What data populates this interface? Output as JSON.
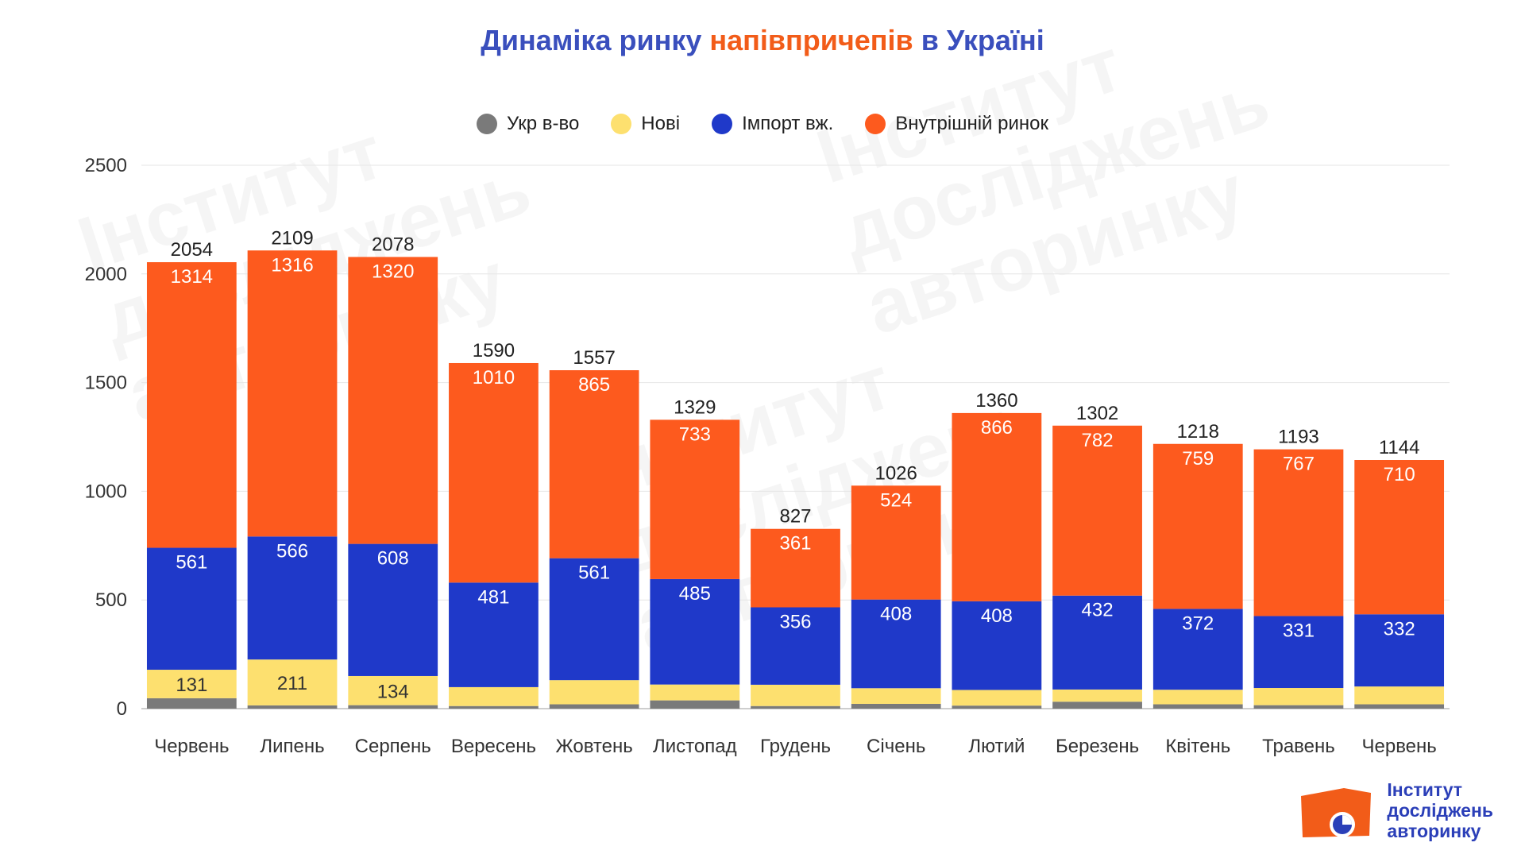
{
  "title": {
    "part1": "Динаміка ринку ",
    "part2": "напівпричепів",
    "part3": " в Україні"
  },
  "colors": {
    "ukr": "#7a7a7a",
    "new": "#fde06f",
    "import": "#1f39c9",
    "domestic": "#fd5a1e",
    "title_blue": "#3a4fbd",
    "title_orange": "#f25c19"
  },
  "logo": {
    "line1": "Інститут",
    "line2": "досліджень",
    "line3": "авторинку"
  },
  "watermark": {
    "line1": "Інститут",
    "line2": "досліджень",
    "line3": "авторинку"
  },
  "chart_data": {
    "type": "bar",
    "stacked": true,
    "categories": [
      "Червень",
      "Липень",
      "Серпень",
      "Вересень",
      "Жовтень",
      "Листопад",
      "Грудень",
      "Січень",
      "Лютий",
      "Березень",
      "Квітень",
      "Травень",
      "Червень"
    ],
    "series": [
      {
        "name": "Укр в-во",
        "values": [
          48,
          15,
          16,
          12,
          20,
          38,
          12,
          22,
          14,
          32,
          20,
          16,
          20
        ]
      },
      {
        "name": "Нові",
        "values": [
          131,
          211,
          134,
          87,
          111,
          73,
          98,
          72,
          72,
          56,
          67,
          79,
          82
        ]
      },
      {
        "name": "Імпорт вж.",
        "values": [
          561,
          566,
          608,
          481,
          561,
          485,
          356,
          408,
          408,
          432,
          372,
          331,
          332
        ]
      },
      {
        "name": "Внутрішній ринок",
        "values": [
          1314,
          1316,
          1320,
          1010,
          865,
          733,
          361,
          524,
          866,
          782,
          759,
          767,
          710
        ]
      }
    ],
    "labeled_series": [
      "Нові",
      "Імпорт вж.",
      "Внутрішній ринок"
    ],
    "new_label_threshold": 120,
    "totals": [
      2054,
      2109,
      2078,
      1590,
      1557,
      1329,
      827,
      1026,
      1360,
      1302,
      1218,
      1193,
      1144
    ],
    "ylim": [
      0,
      2500
    ],
    "yticks": [
      0,
      500,
      1000,
      1500,
      2000,
      2500
    ],
    "grid": true,
    "legend_position": "top-center"
  }
}
